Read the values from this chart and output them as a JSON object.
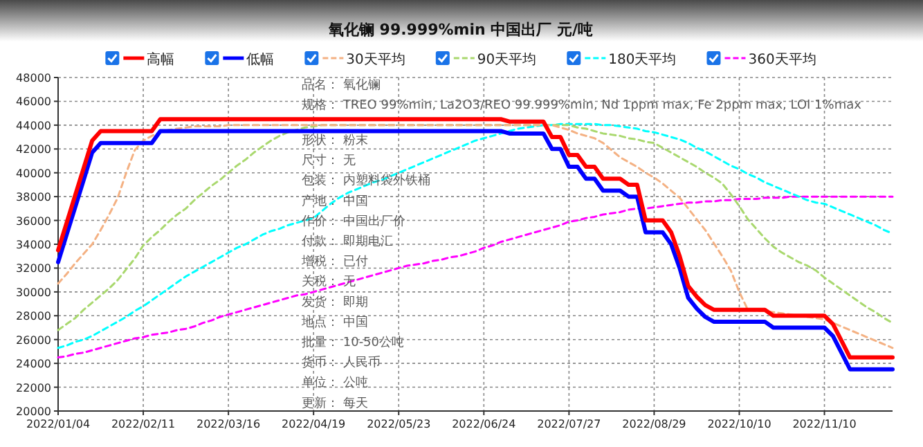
{
  "chart_data": {
    "type": "line",
    "title": "氧化镧 99.999%min 中国出厂 元/吨",
    "legend": "top",
    "grid": true,
    "categories": [
      "2022/01/04",
      null,
      null,
      null,
      null,
      null,
      null,
      null,
      null,
      null,
      "2022/02/11",
      null,
      null,
      null,
      null,
      null,
      null,
      null,
      null,
      null,
      "2022/03/16",
      null,
      null,
      null,
      null,
      null,
      null,
      null,
      null,
      null,
      "2022/04/19",
      null,
      null,
      null,
      null,
      null,
      null,
      null,
      null,
      null,
      "2022/05/23",
      null,
      null,
      null,
      null,
      null,
      null,
      null,
      null,
      null,
      "2022/06/24",
      null,
      null,
      null,
      null,
      null,
      null,
      null,
      null,
      null,
      "2022/07/27",
      null,
      null,
      null,
      null,
      null,
      null,
      null,
      null,
      null,
      "2022/08/29",
      null,
      null,
      null,
      null,
      null,
      null,
      null,
      null,
      null,
      "2022/10/10",
      null,
      null,
      null,
      null,
      null,
      null,
      null,
      null,
      null,
      "2022/11/10",
      null,
      null,
      null,
      null,
      null,
      null,
      null,
      null
    ],
    "ylim": [
      20000,
      48000
    ],
    "yticks": [
      20000,
      22000,
      24000,
      26000,
      28000,
      30000,
      32000,
      34000,
      36000,
      38000,
      40000,
      42000,
      44000,
      46000,
      48000
    ],
    "series": [
      {
        "name": "高幅",
        "color": "#ff0000",
        "line_style": "solid",
        "values": [
          33500,
          35800,
          38100,
          40400,
          42700,
          43500,
          43500,
          43500,
          43500,
          43500,
          43500,
          43500,
          44500,
          44500,
          44500,
          44500,
          44500,
          44500,
          44500,
          44500,
          44500,
          44500,
          44500,
          44500,
          44500,
          44500,
          44500,
          44500,
          44500,
          44500,
          44500,
          44500,
          44500,
          44500,
          44500,
          44500,
          44500,
          44500,
          44500,
          44500,
          44500,
          44500,
          44500,
          44500,
          44500,
          44500,
          44500,
          44500,
          44500,
          44500,
          44500,
          44500,
          44500,
          44300,
          44300,
          44300,
          44300,
          44300,
          43000,
          43000,
          41500,
          41500,
          40500,
          40500,
          39500,
          39500,
          39500,
          39000,
          39000,
          36000,
          36000,
          36000,
          35000,
          33000,
          30500,
          29600,
          28900,
          28500,
          28500,
          28500,
          28500,
          28500,
          28500,
          28500,
          28000,
          28000,
          28000,
          28000,
          28000,
          28000,
          28000,
          27300,
          25900,
          24500,
          24500,
          24500,
          24500,
          24500,
          24500
        ]
      },
      {
        "name": "低幅",
        "color": "#0000ff",
        "line_style": "solid",
        "values": [
          32500,
          34800,
          37100,
          39400,
          41700,
          42500,
          42500,
          42500,
          42500,
          42500,
          42500,
          42500,
          43500,
          43500,
          43500,
          43500,
          43500,
          43500,
          43500,
          43500,
          43500,
          43500,
          43500,
          43500,
          43500,
          43500,
          43500,
          43500,
          43500,
          43500,
          43500,
          43500,
          43500,
          43500,
          43500,
          43500,
          43500,
          43500,
          43500,
          43500,
          43500,
          43500,
          43500,
          43500,
          43500,
          43500,
          43500,
          43500,
          43500,
          43500,
          43500,
          43500,
          43500,
          43300,
          43300,
          43300,
          43300,
          43300,
          42000,
          42000,
          40500,
          40500,
          39500,
          39500,
          38500,
          38500,
          38500,
          38000,
          38000,
          35000,
          35000,
          35000,
          34000,
          32000,
          29500,
          28600,
          27900,
          27500,
          27500,
          27500,
          27500,
          27500,
          27500,
          27500,
          27000,
          27000,
          27000,
          27000,
          27000,
          27000,
          27000,
          26300,
          24900,
          23500,
          23500,
          23500,
          23500,
          23500,
          23500
        ]
      },
      {
        "name": "30天平均",
        "color": "#f4b183",
        "line_style": "dashed",
        "values": [
          30700,
          31500,
          32400,
          33200,
          34000,
          35200,
          36500,
          37900,
          40000,
          41900,
          42700,
          43100,
          43400,
          43600,
          43700,
          43800,
          43900,
          43900,
          43900,
          43900,
          44000,
          44000,
          44000,
          44000,
          44000,
          44000,
          44000,
          44000,
          44000,
          44000,
          44000,
          44000,
          44000,
          44000,
          44000,
          44000,
          44000,
          44000,
          44000,
          44000,
          44000,
          44000,
          44000,
          44000,
          44000,
          44000,
          44000,
          44000,
          44000,
          44000,
          44000,
          44000,
          44000,
          44000,
          44000,
          44000,
          44000,
          44000,
          44000,
          43800,
          43600,
          43300,
          43100,
          42900,
          42500,
          41900,
          41300,
          40900,
          40500,
          40000,
          39600,
          39100,
          38500,
          37900,
          37000,
          36100,
          35200,
          34100,
          33000,
          31800,
          30000,
          28500,
          28400,
          28400,
          28300,
          28200,
          28100,
          28000,
          27900,
          27800,
          27700,
          27400,
          27100,
          26800,
          26500,
          26200,
          25900,
          25600,
          25300
        ]
      },
      {
        "name": "90天平均",
        "color": "#a9d86e",
        "line_style": "dashed",
        "values": [
          26800,
          27300,
          27800,
          28500,
          29100,
          29700,
          30300,
          31000,
          31900,
          32800,
          33900,
          34600,
          35200,
          35900,
          36500,
          37000,
          37700,
          38300,
          38900,
          39400,
          40000,
          40600,
          41100,
          41700,
          42200,
          42700,
          43100,
          43400,
          43600,
          43800,
          43900,
          44000,
          44000,
          44000,
          44000,
          44000,
          44000,
          44000,
          44000,
          44000,
          44000,
          44000,
          44000,
          44000,
          44000,
          44000,
          44000,
          44000,
          44000,
          44000,
          44000,
          44000,
          44000,
          44000,
          44000,
          44000,
          44000,
          44000,
          44000,
          44000,
          44000,
          43800,
          43700,
          43500,
          43300,
          43200,
          43100,
          42900,
          42800,
          42600,
          42500,
          42100,
          41700,
          41300,
          40900,
          40500,
          40000,
          39600,
          39100,
          38200,
          37200,
          36100,
          35300,
          34500,
          33800,
          33300,
          32900,
          32500,
          32200,
          31800,
          31200,
          30700,
          30200,
          29700,
          29200,
          28700,
          28300,
          27800,
          27400
        ]
      },
      {
        "name": "180天平均",
        "color": "#00ffff",
        "line_style": "dashed",
        "values": [
          25300,
          25500,
          25800,
          26000,
          26300,
          26700,
          27100,
          27500,
          27900,
          28400,
          28800,
          29300,
          29800,
          30300,
          30800,
          31300,
          31700,
          32100,
          32500,
          32900,
          33300,
          33700,
          34000,
          34400,
          34800,
          35100,
          35300,
          35600,
          35800,
          36000,
          36200,
          36800,
          37400,
          37900,
          38300,
          38600,
          38900,
          39200,
          39400,
          39700,
          40000,
          40300,
          40600,
          40900,
          41200,
          41500,
          41800,
          42100,
          42400,
          42700,
          42900,
          43100,
          43300,
          43500,
          43700,
          43800,
          43900,
          44000,
          44000,
          44100,
          44100,
          44100,
          44100,
          44100,
          44000,
          44000,
          43900,
          43800,
          43700,
          43500,
          43400,
          43200,
          43000,
          42800,
          42500,
          42100,
          41800,
          41400,
          41000,
          40600,
          40300,
          39900,
          39600,
          39200,
          38900,
          38600,
          38300,
          38000,
          37700,
          37500,
          37400,
          37100,
          36800,
          36500,
          36200,
          35900,
          35600,
          35200,
          34900
        ]
      },
      {
        "name": "360天平均",
        "color": "#ff00ff",
        "line_style": "dashed",
        "values": [
          24500,
          24600,
          24800,
          24900,
          25100,
          25300,
          25500,
          25700,
          25900,
          26100,
          26200,
          26400,
          26500,
          26600,
          26800,
          26900,
          27100,
          27400,
          27600,
          27900,
          28100,
          28300,
          28500,
          28700,
          28900,
          29100,
          29300,
          29500,
          29700,
          29800,
          30000,
          30200,
          30400,
          30600,
          30800,
          31000,
          31200,
          31400,
          31600,
          31800,
          32000,
          32200,
          32300,
          32400,
          32600,
          32700,
          32900,
          33000,
          33200,
          33400,
          33700,
          33900,
          34200,
          34400,
          34600,
          34800,
          35000,
          35200,
          35400,
          35600,
          35900,
          36000,
          36200,
          36300,
          36500,
          36600,
          36700,
          36900,
          37000,
          37000,
          37100,
          37200,
          37300,
          37400,
          37500,
          37500,
          37600,
          37600,
          37700,
          37700,
          37800,
          37800,
          37800,
          37900,
          37900,
          37900,
          38000,
          38000,
          38000,
          38000,
          38000,
          38000,
          38000,
          38000,
          38000,
          38000,
          38000,
          38000,
          38000
        ]
      }
    ],
    "annotations": [
      "品名： 氧化镧",
      "规格： TREO 99%min, La2O3/REO 99.999%min, Nd 1ppm max, Fe 2ppm max, LOI 1%max",
      "形状： 粉末",
      "尺寸： 无",
      "包装： 内塑料袋外铁桶",
      "产地： 中国",
      "作价： 中国出厂价",
      "付款： 即期电汇",
      "增税： 已付",
      "关税： 无",
      "发货： 即期",
      "地点： 中国",
      "批量： 10-50公吨",
      "货币： 人民币",
      "单位： 公吨",
      "更新： 每天"
    ]
  }
}
